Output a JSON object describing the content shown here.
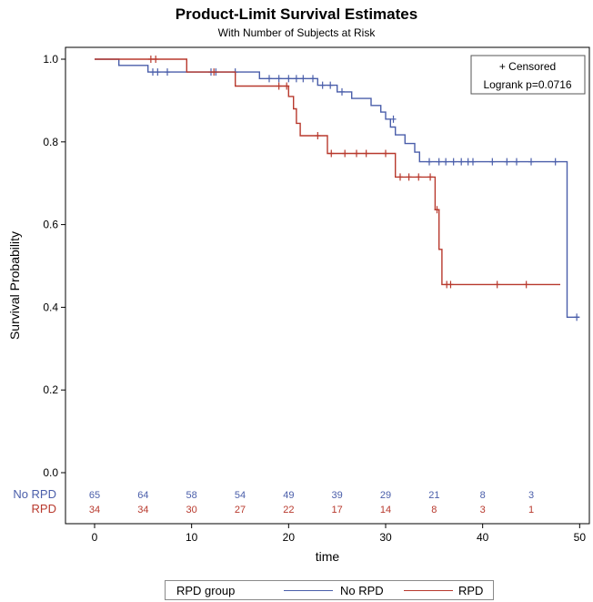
{
  "chart_data": {
    "type": "line",
    "title": "Product-Limit Survival Estimates",
    "subtitle": "With Number of Subjects at Risk",
    "xlabel": "time",
    "ylabel": "Survival Probability",
    "xlim": [
      -3,
      51
    ],
    "ylim": [
      0,
      1.0
    ],
    "x_ticks": [
      0,
      10,
      20,
      30,
      40,
      50
    ],
    "y_ticks": [
      0.0,
      0.2,
      0.4,
      0.6,
      0.8,
      1.0
    ],
    "x_tick_labels": [
      "0",
      "10",
      "20",
      "30",
      "40",
      "50"
    ],
    "y_tick_labels": [
      "0.0",
      "0.2",
      "0.4",
      "0.6",
      "0.8",
      "1.0"
    ],
    "grid": false,
    "legend": {
      "title": "RPD group",
      "placement": "bottom",
      "entries": [
        {
          "label": "No RPD",
          "color": "#4a5eaa"
        },
        {
          "label": "RPD",
          "color": "#b8392d"
        }
      ]
    },
    "annotation": {
      "line1": "+ Censored",
      "line2": "Logrank p=0.0716",
      "placement": "top-right"
    },
    "series": [
      {
        "name": "No RPD",
        "color": "#4a5eaa",
        "steps": [
          [
            0,
            1.0
          ],
          [
            2.5,
            0.985
          ],
          [
            5.5,
            0.969
          ],
          [
            17,
            0.953
          ],
          [
            23,
            0.937
          ],
          [
            25,
            0.921
          ],
          [
            26.5,
            0.905
          ],
          [
            28.5,
            0.888
          ],
          [
            29.5,
            0.872
          ],
          [
            30,
            0.855
          ],
          [
            30.5,
            0.836
          ],
          [
            31,
            0.817
          ],
          [
            32,
            0.796
          ],
          [
            33,
            0.775
          ],
          [
            33.5,
            0.752
          ],
          [
            48.5,
            0.752
          ],
          [
            48.7,
            0.376
          ],
          [
            50,
            0.376
          ]
        ],
        "censored": [
          [
            6.0,
            0.969
          ],
          [
            6.5,
            0.969
          ],
          [
            7.5,
            0.969
          ],
          [
            12,
            0.969
          ],
          [
            12.5,
            0.969
          ],
          [
            14.5,
            0.969
          ],
          [
            18,
            0.953
          ],
          [
            19,
            0.953
          ],
          [
            20,
            0.953
          ],
          [
            20.8,
            0.953
          ],
          [
            21.5,
            0.953
          ],
          [
            22.5,
            0.953
          ],
          [
            23.5,
            0.937
          ],
          [
            24.3,
            0.937
          ],
          [
            25.5,
            0.921
          ],
          [
            30.8,
            0.855
          ],
          [
            34.5,
            0.752
          ],
          [
            35.5,
            0.752
          ],
          [
            36.2,
            0.752
          ],
          [
            37,
            0.752
          ],
          [
            37.8,
            0.752
          ],
          [
            38.5,
            0.752
          ],
          [
            39,
            0.752
          ],
          [
            41,
            0.752
          ],
          [
            42.5,
            0.752
          ],
          [
            43.5,
            0.752
          ],
          [
            45,
            0.752
          ],
          [
            47.5,
            0.752
          ],
          [
            49.7,
            0.376
          ]
        ]
      },
      {
        "name": "RPD",
        "color": "#b8392d",
        "steps": [
          [
            0,
            1.0
          ],
          [
            9.5,
            0.969
          ],
          [
            14.5,
            0.935
          ],
          [
            20,
            0.91
          ],
          [
            20.5,
            0.88
          ],
          [
            20.8,
            0.845
          ],
          [
            21.2,
            0.815
          ],
          [
            24,
            0.772
          ],
          [
            31,
            0.715
          ],
          [
            35.1,
            0.636
          ],
          [
            35.5,
            0.54
          ],
          [
            35.8,
            0.455
          ],
          [
            48,
            0.455
          ]
        ],
        "censored": [
          [
            5.8,
            1.0
          ],
          [
            6.3,
            1.0
          ],
          [
            12.3,
            0.969
          ],
          [
            19,
            0.935
          ],
          [
            19.8,
            0.935
          ],
          [
            23,
            0.815
          ],
          [
            24.4,
            0.772
          ],
          [
            25.8,
            0.772
          ],
          [
            27,
            0.772
          ],
          [
            28,
            0.772
          ],
          [
            30,
            0.772
          ],
          [
            31.5,
            0.715
          ],
          [
            32.4,
            0.715
          ],
          [
            33.4,
            0.715
          ],
          [
            34.6,
            0.715
          ],
          [
            35.3,
            0.636
          ],
          [
            36.3,
            0.455
          ],
          [
            36.7,
            0.455
          ],
          [
            41.5,
            0.455
          ],
          [
            44.5,
            0.455
          ]
        ]
      }
    ],
    "at_risk": {
      "times": [
        0,
        5,
        10,
        15,
        20,
        25,
        30,
        35,
        40,
        45
      ],
      "rows": [
        {
          "name": "No RPD",
          "color": "#4a5eaa",
          "counts": [
            "65",
            "64",
            "58",
            "54",
            "49",
            "39",
            "29",
            "21",
            "8",
            "3"
          ]
        },
        {
          "name": "RPD",
          "color": "#b8392d",
          "counts": [
            "34",
            "34",
            "30",
            "27",
            "22",
            "17",
            "14",
            "8",
            "3",
            "1"
          ]
        }
      ]
    }
  }
}
